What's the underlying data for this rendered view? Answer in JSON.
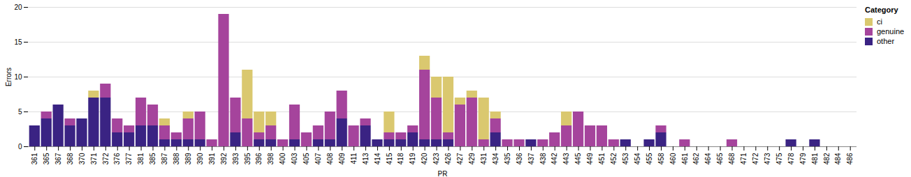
{
  "chart_data": {
    "type": "bar",
    "stacked": true,
    "x_label": "PR",
    "y_label": "Errors",
    "legend_title": "Category",
    "legend": "top-right",
    "grid": true,
    "ylim": [
      0,
      20
    ],
    "yticks": [
      0,
      5,
      10,
      15,
      20
    ],
    "categories": [
      "361",
      "365",
      "367",
      "368",
      "370",
      "371",
      "372",
      "376",
      "377",
      "381",
      "385",
      "387",
      "388",
      "389",
      "390",
      "391",
      "392",
      "393",
      "395",
      "396",
      "398",
      "400",
      "403",
      "405",
      "407",
      "408",
      "409",
      "411",
      "413",
      "414",
      "415",
      "418",
      "419",
      "420",
      "423",
      "426",
      "427",
      "429",
      "431",
      "434",
      "435",
      "436",
      "437",
      "438",
      "442",
      "443",
      "445",
      "449",
      "451",
      "452",
      "453",
      "454",
      "455",
      "458",
      "460",
      "461",
      "462",
      "464",
      "465",
      "468",
      "471",
      "472",
      "473",
      "475",
      "478",
      "479",
      "481",
      "482",
      "484",
      "486"
    ],
    "series": [
      {
        "name": "ci",
        "color": "#dac86f",
        "values": [
          0,
          0,
          0,
          0,
          0,
          1,
          0,
          0,
          0,
          0,
          0,
          1,
          0,
          1,
          0,
          0,
          0,
          0,
          7,
          3,
          2,
          0,
          0,
          0,
          0,
          0,
          0,
          0,
          0,
          0,
          3,
          0,
          0,
          2,
          3,
          8,
          1,
          1,
          6,
          1,
          0,
          0,
          0,
          0,
          0,
          2,
          0,
          0,
          0,
          0,
          0,
          0,
          0,
          0,
          0,
          0,
          0,
          0,
          0,
          0,
          0,
          0,
          0,
          0,
          0,
          0,
          0,
          0,
          0,
          0
        ]
      },
      {
        "name": "genuine",
        "color": "#a5449c",
        "values": [
          0,
          1,
          0,
          1,
          0,
          0,
          2,
          2,
          1,
          4,
          3,
          2,
          1,
          3,
          4,
          1,
          19,
          5,
          4,
          1,
          2,
          1,
          5,
          2,
          2,
          4,
          4,
          3,
          1,
          0,
          1,
          1,
          1,
          10,
          6,
          1,
          6,
          7,
          1,
          2,
          1,
          1,
          0,
          1,
          2,
          3,
          5,
          3,
          3,
          1,
          0,
          0,
          0,
          1,
          0,
          1,
          0,
          0,
          0,
          1,
          0,
          0,
          0,
          0,
          0,
          0,
          0,
          0,
          0,
          0
        ]
      },
      {
        "name": "other",
        "color": "#3a2383",
        "values": [
          3,
          4,
          6,
          3,
          4,
          7,
          7,
          2,
          2,
          3,
          3,
          1,
          1,
          1,
          1,
          0,
          0,
          2,
          0,
          1,
          1,
          0,
          1,
          0,
          1,
          1,
          4,
          0,
          3,
          1,
          1,
          1,
          2,
          1,
          1,
          1,
          0,
          0,
          0,
          2,
          0,
          0,
          1,
          0,
          0,
          0,
          0,
          0,
          0,
          0,
          1,
          0,
          1,
          2,
          0,
          0,
          0,
          0,
          0,
          0,
          0,
          0,
          0,
          0,
          1,
          0,
          1,
          0,
          0,
          0
        ]
      }
    ]
  }
}
